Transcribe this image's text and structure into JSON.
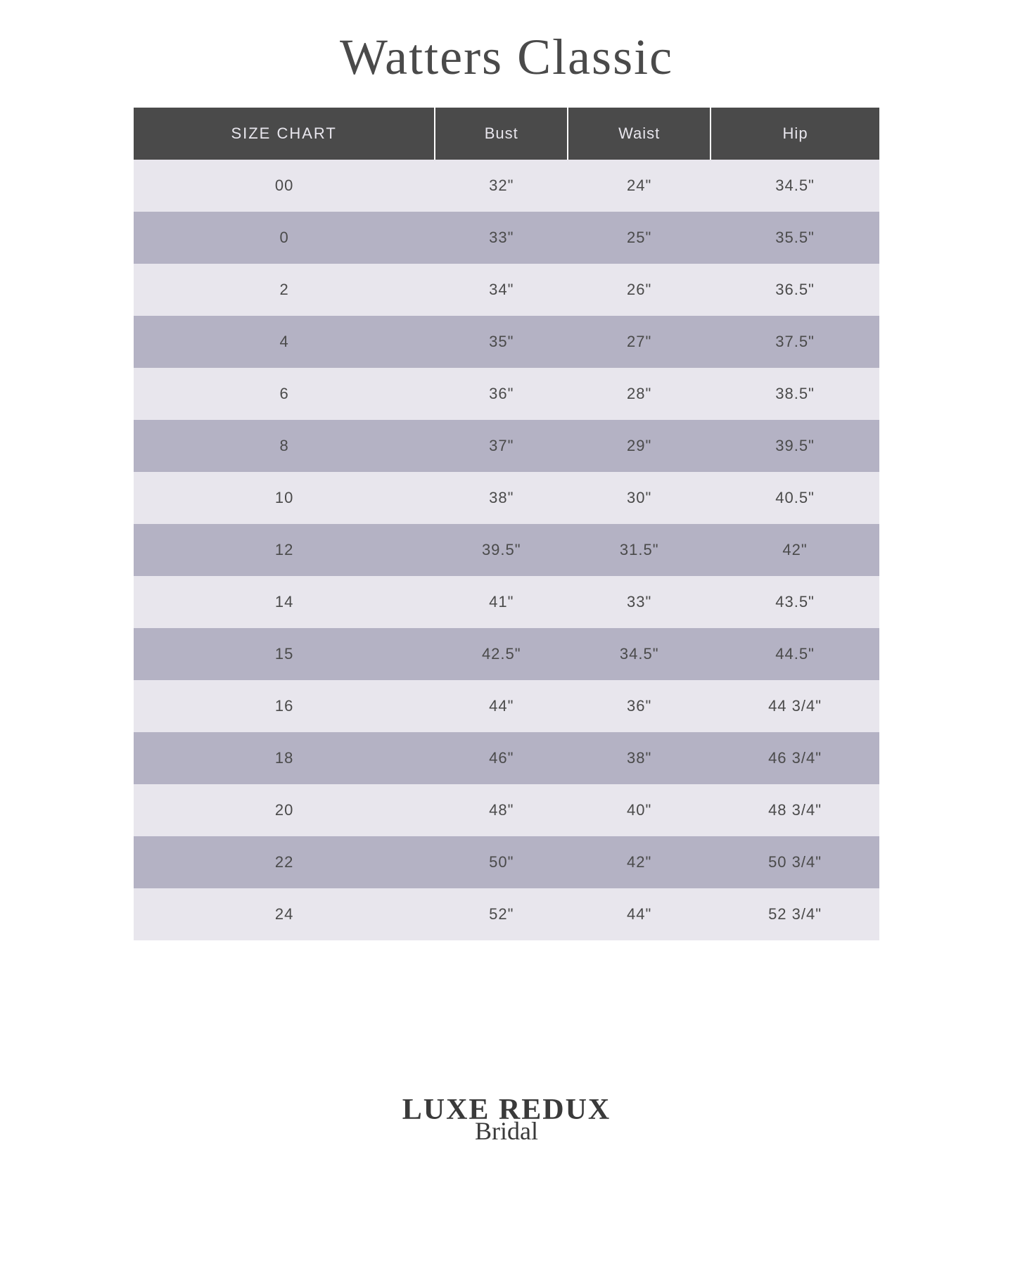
{
  "title": "Watters Classic",
  "table": {
    "columns": [
      "SIZE CHART",
      "Bust",
      "Waist",
      "Hip"
    ],
    "rows": [
      [
        "00",
        "32\"",
        "24\"",
        "34.5\""
      ],
      [
        "0",
        "33\"",
        "25\"",
        "35.5\""
      ],
      [
        "2",
        "34\"",
        "26\"",
        "36.5\""
      ],
      [
        "4",
        "35\"",
        "27\"",
        "37.5\""
      ],
      [
        "6",
        "36\"",
        "28\"",
        "38.5\""
      ],
      [
        "8",
        "37\"",
        "29\"",
        "39.5\""
      ],
      [
        "10",
        "38\"",
        "30\"",
        "40.5\""
      ],
      [
        "12",
        "39.5\"",
        "31.5\"",
        "42\""
      ],
      [
        "14",
        "41\"",
        "33\"",
        "43.5\""
      ],
      [
        "15",
        "42.5\"",
        "34.5\"",
        "44.5\""
      ],
      [
        "16",
        "44\"",
        "36\"",
        "44 3/4\""
      ],
      [
        "18",
        "46\"",
        "38\"",
        "46 3/4\""
      ],
      [
        "20",
        "48\"",
        "40\"",
        "48 3/4\""
      ],
      [
        "22",
        "50\"",
        "42\"",
        "50 3/4\""
      ],
      [
        "24",
        "52\"",
        "44\"",
        "52 3/4\""
      ]
    ],
    "header_bg": "#4a4a4a",
    "header_text_color": "#e8e6ed",
    "row_light_bg": "#e8e6ed",
    "row_dark_bg": "#b4b2c4",
    "cell_text_color": "#4a4a4a",
    "cell_fontsize": 22,
    "header_fontsize": 22
  },
  "logo": {
    "main": "LUXE REDUX",
    "sub": "Bridal"
  },
  "colors": {
    "background": "#ffffff",
    "title_color": "#4a4a4a",
    "logo_color": "#3a3a3a"
  }
}
